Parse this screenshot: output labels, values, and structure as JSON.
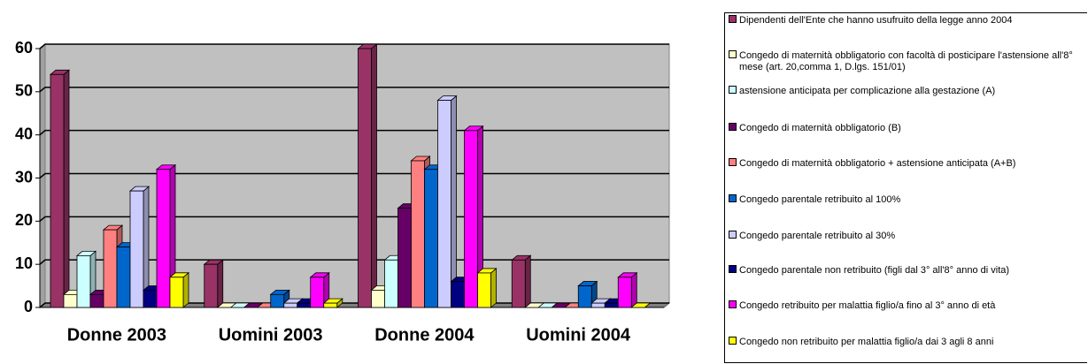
{
  "chart_data": {
    "type": "bar3d",
    "categories": [
      "Donne 2003",
      "Uomini 2003",
      "Donne 2004",
      "Uomini 2004"
    ],
    "series": [
      {
        "name": "Dipendenti dell'Ente che hanno usufruito della legge anno 2004",
        "color": "#993366",
        "values": [
          54,
          10,
          60,
          11
        ]
      },
      {
        "name": "Congedo di maternità obbligatorio con facoltà di posticipare l'astensione all'8° mese (art. 20,comma 1, D.lgs. 151/01)",
        "color": "#FFFFCC",
        "values": [
          3,
          0,
          4,
          0
        ]
      },
      {
        "name": "astensione anticipata per complicazione alla gestazione (A)",
        "color": "#CCFFFF",
        "values": [
          12,
          0,
          11,
          0
        ]
      },
      {
        "name": "Congedo di maternità obbligatorio (B)",
        "color": "#660066",
        "values": [
          3,
          0,
          23,
          0
        ]
      },
      {
        "name": "Congedo di maternità obbligatorio + astensione anticipata (A+B)",
        "color": "#FF8080",
        "values": [
          18,
          0,
          34,
          0
        ]
      },
      {
        "name": "Congedo parentale retribuito al 100%",
        "color": "#0066CC",
        "values": [
          14,
          3,
          32,
          5
        ]
      },
      {
        "name": "Congedo parentale retribuito al 30%",
        "color": "#CCCCFF",
        "values": [
          27,
          1,
          48,
          1
        ]
      },
      {
        "name": "Congedo parentale non retribuito (figli dal 3° all'8° anno di vita)",
        "color": "#000080",
        "values": [
          4,
          1,
          6,
          1
        ]
      },
      {
        "name": "Congedo retribuito per malattia figlio/a fino al 3° anno di età",
        "color": "#FF00FF",
        "values": [
          32,
          7,
          41,
          7
        ]
      },
      {
        "name": "Congedo non retribuito per malattia figlio/a dai 3 agli 8 anni",
        "color": "#FFFF00",
        "values": [
          7,
          1,
          8,
          0
        ]
      }
    ],
    "ylim": [
      0,
      60
    ],
    "yticks": [
      0,
      10,
      20,
      30,
      40,
      50,
      60
    ],
    "grid": true,
    "legend": "right"
  }
}
